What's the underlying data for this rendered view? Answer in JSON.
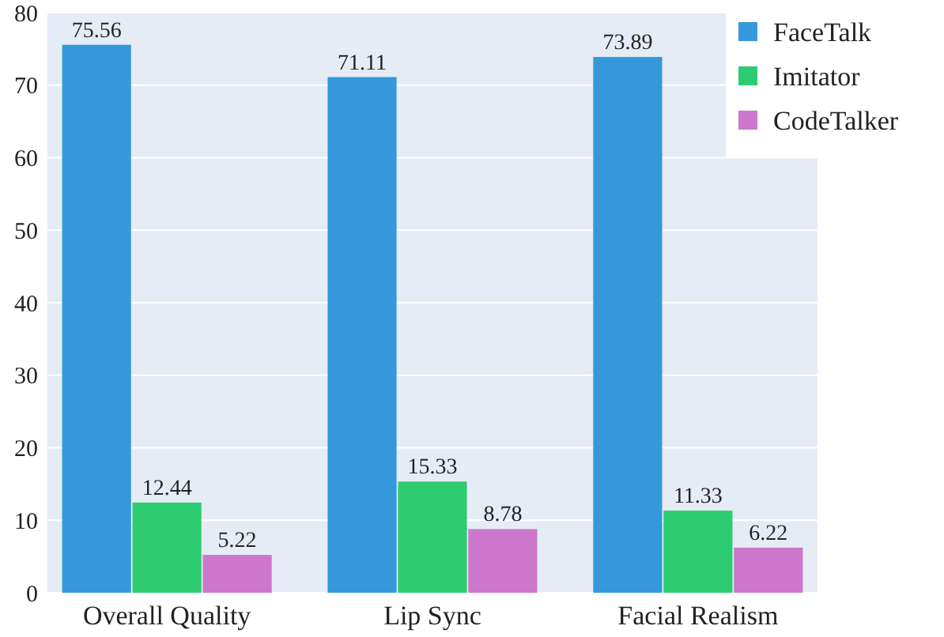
{
  "chart_data": {
    "type": "bar",
    "categories": [
      "Overall Quality",
      "Lip Sync",
      "Facial Realism"
    ],
    "series": [
      {
        "name": "FaceTalk",
        "color": "#3498db",
        "values": [
          75.56,
          71.11,
          73.89
        ]
      },
      {
        "name": "Imitator",
        "color": "#2ecc71",
        "values": [
          12.44,
          15.33,
          11.33
        ]
      },
      {
        "name": "CodeTalker",
        "color": "#cc77cc",
        "values": [
          5.22,
          8.78,
          6.22
        ]
      }
    ],
    "ylim": [
      0,
      80
    ],
    "yticks": [
      0,
      10,
      20,
      30,
      40,
      50,
      60,
      70,
      80
    ],
    "grid": "y",
    "legend": "top right",
    "data_labels": true
  }
}
